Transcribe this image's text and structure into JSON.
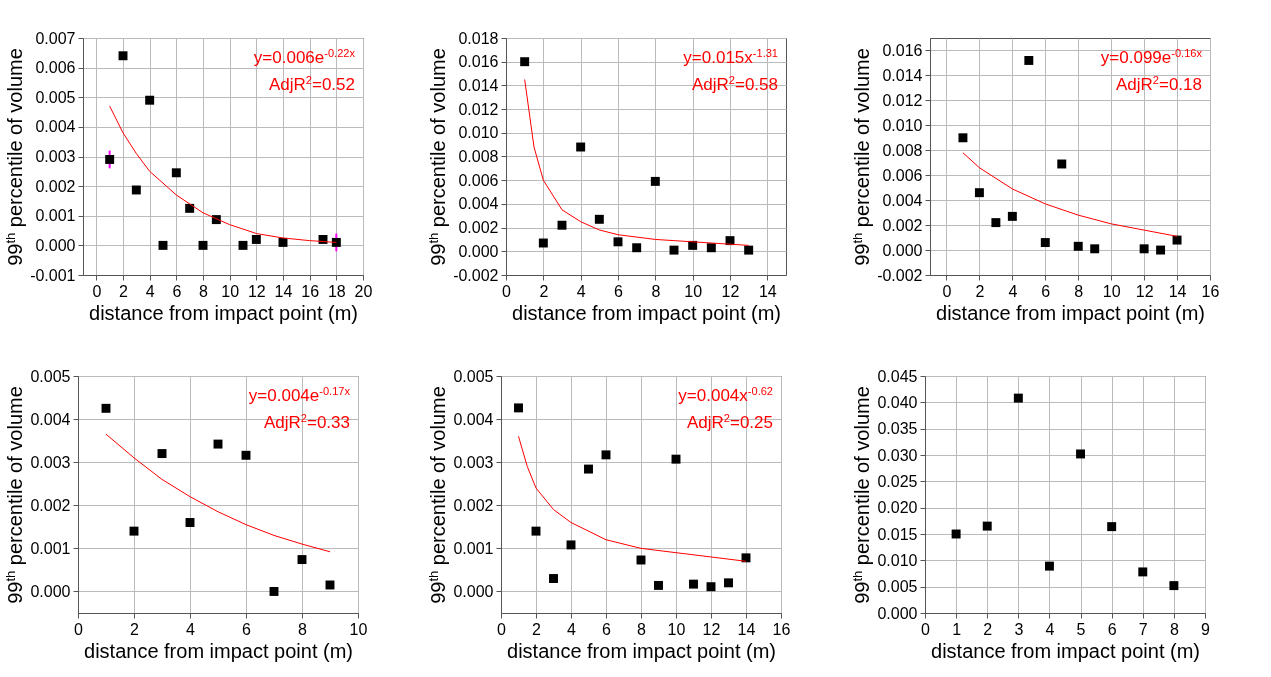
{
  "chart_data": [
    {
      "type": "scatter",
      "xlabel": "distance from impact point (m)",
      "ylabel": "99$^{th}$ percentile of volume",
      "xlim": [
        -1,
        20
      ],
      "xticks": [
        0,
        2,
        4,
        6,
        8,
        10,
        12,
        14,
        16,
        18,
        20
      ],
      "ylim": [
        -0.001,
        0.007
      ],
      "yticks": [
        {
          "value": -0.001,
          "label": "-0.001"
        },
        {
          "value": 0,
          "label": "0.000"
        },
        0.001,
        0.002,
        0.003,
        0.004,
        0.005,
        0.006,
        0.007
      ],
      "grid": true,
      "marker": "square",
      "annotations": [
        "y=0.006e$^{-0.22x}$",
        "AdjR$^{2}$=0.52"
      ],
      "series": [
        {
          "color": "#000000",
          "x": [
            1,
            2,
            3,
            4,
            5,
            6,
            7,
            8,
            9,
            11,
            12,
            14,
            17,
            18
          ],
          "values": [
            0.0029,
            0.0064,
            0.00187,
            0.0049,
            0.0,
            0.00245,
            0.00125,
            0.0,
            0.00087,
            0.0,
            0.0002,
            0.0001,
            0.0002,
            0.0001
          ],
          "errors": [
            0.0003,
            null,
            null,
            null,
            null,
            null,
            null,
            null,
            null,
            null,
            null,
            null,
            null,
            0.0003
          ]
        },
        {
          "type": "line",
          "marker": "none",
          "color": "#ff0000",
          "x": [
            1,
            2,
            3,
            4,
            6,
            8,
            10,
            12,
            14,
            16,
            18
          ],
          "values": [
            0.0047,
            0.0038,
            0.0031,
            0.0025,
            0.0017,
            0.0011,
            0.0007,
            0.0004,
            0.00025,
            0.00016,
            0.0001
          ]
        }
      ]
    },
    {
      "type": "scatter",
      "xlabel": "distance from impact point (m)",
      "ylabel": "99$^{th}$ percentile of volume",
      "xlim": [
        0,
        15
      ],
      "xticks": [
        0,
        2,
        4,
        6,
        8,
        10,
        12,
        14
      ],
      "ylim": [
        -0.002,
        0.018
      ],
      "yticks": [
        {
          "value": -0.002,
          "label": "-0.002"
        },
        {
          "value": 0,
          "label": "0.000"
        },
        {
          "value": 0.002,
          "label": "0.002"
        },
        {
          "value": 0.004,
          "label": "0.004"
        },
        {
          "value": 0.006,
          "label": "0.006"
        },
        {
          "value": 0.008,
          "label": "0.008"
        },
        {
          "value": 0.01,
          "label": "0.010"
        },
        {
          "value": 0.012,
          "label": "0.012"
        },
        {
          "value": 0.014,
          "label": "0.014"
        },
        {
          "value": 0.016,
          "label": "0.016"
        },
        {
          "value": 0.018,
          "label": "0.018"
        }
      ],
      "grid": true,
      "marker": "square",
      "annotations": [
        "y=0.015x$^{-1.31}$",
        "AdjR$^{2}$=0.58"
      ],
      "series": [
        {
          "color": "#000000",
          "x": [
            1,
            2,
            3,
            4,
            5,
            6,
            7,
            8,
            9,
            10,
            11,
            12,
            13
          ],
          "values": [
            0.016,
            0.0007,
            0.0022,
            0.0088,
            0.0027,
            0.0008,
            0.0003,
            0.0059,
            0.0001,
            0.0005,
            0.0003,
            0.0009,
            0.0001
          ]
        },
        {
          "type": "line",
          "marker": "none",
          "color": "#ff0000",
          "x": [
            1,
            1.5,
            2,
            3,
            4,
            5,
            6,
            8,
            10,
            13
          ],
          "values": [
            0.0145,
            0.0088,
            0.006,
            0.0035,
            0.0025,
            0.0018,
            0.0014,
            0.001,
            0.0008,
            0.0005
          ]
        }
      ]
    },
    {
      "type": "scatter",
      "xlabel": "distance from impact point (m)",
      "ylabel": "99$^{th}$ percentile of volume",
      "xlim": [
        -1,
        16
      ],
      "xticks": [
        0,
        2,
        4,
        6,
        8,
        10,
        12,
        14,
        16
      ],
      "ylim": [
        -0.002,
        0.017
      ],
      "yticks": [
        {
          "value": -0.002,
          "label": "-0.002"
        },
        {
          "value": 0,
          "label": "0.000"
        },
        {
          "value": 0.002,
          "label": "0.002"
        },
        {
          "value": 0.004,
          "label": "0.004"
        },
        {
          "value": 0.006,
          "label": "0.006"
        },
        {
          "value": 0.008,
          "label": "0.008"
        },
        {
          "value": 0.01,
          "label": "0.010"
        },
        {
          "value": 0.012,
          "label": "0.012"
        },
        {
          "value": 0.014,
          "label": "0.014"
        },
        {
          "value": 0.016,
          "label": "0.016"
        }
      ],
      "grid": true,
      "marker": "square",
      "annotations": [
        "y=0.099e$^{-0.16x}$",
        "AdjR$^{2}$=0.18"
      ],
      "series": [
        {
          "color": "#000000",
          "x": [
            1,
            2,
            3,
            4,
            5,
            6,
            7,
            8,
            9,
            12,
            13,
            14
          ],
          "values": [
            0.009,
            0.0046,
            0.0022,
            0.0027,
            0.0152,
            0.0006,
            0.0069,
            0.0003,
            0.0001,
            0.0001,
            0.0,
            0.0008
          ]
        },
        {
          "type": "line",
          "marker": "none",
          "color": "#ff0000",
          "x": [
            1,
            2,
            4,
            6,
            8,
            10,
            12,
            14
          ],
          "values": [
            0.0078,
            0.0066,
            0.0049,
            0.0037,
            0.0028,
            0.0021,
            0.0016,
            0.0011
          ]
        }
      ]
    },
    {
      "type": "scatter",
      "xlabel": "distance from impact point (m)",
      "ylabel": "99$^{th}$ percentile of volume",
      "xlim": [
        0,
        10
      ],
      "xticks": [
        0,
        2,
        4,
        6,
        8,
        10
      ],
      "ylim": [
        -0.0005,
        0.005
      ],
      "yticks": [
        {
          "value": 0,
          "label": "0.000"
        },
        0.001,
        0.002,
        0.003,
        0.004,
        0.005
      ],
      "grid": true,
      "marker": "square",
      "annotations": [
        "y=0.004e$^{-0.17x}$",
        "AdjR$^{2}$=0.33"
      ],
      "series": [
        {
          "color": "#000000",
          "x": [
            1,
            2,
            3,
            4,
            5,
            6,
            7,
            8,
            9
          ],
          "values": [
            0.00425,
            0.0014,
            0.0032,
            0.0016,
            0.00342,
            0.00316,
            0.0,
            0.00074,
            0.00015
          ]
        },
        {
          "type": "line",
          "marker": "none",
          "color": "#ff0000",
          "x": [
            1,
            2,
            3,
            4,
            5,
            6,
            7,
            8,
            9
          ],
          "values": [
            0.00365,
            0.0031,
            0.0026,
            0.0022,
            0.00185,
            0.00155,
            0.0013,
            0.0011,
            0.00092
          ]
        }
      ]
    },
    {
      "type": "scatter",
      "xlabel": "distance from impact point (m)",
      "ylabel": "99$^{th}$ percentile of volume",
      "xlim": [
        0,
        16
      ],
      "xticks": [
        0,
        2,
        4,
        6,
        8,
        10,
        12,
        14,
        16
      ],
      "ylim": [
        -0.0005,
        0.005
      ],
      "yticks": [
        {
          "value": 0,
          "label": "0.000"
        },
        0.001,
        0.002,
        0.003,
        0.004,
        0.005
      ],
      "grid": true,
      "marker": "square",
      "annotations": [
        "y=0.004x$^{-0.62}$",
        "AdjR$^{2}$=0.25"
      ],
      "series": [
        {
          "color": "#000000",
          "x": [
            1,
            2,
            3,
            4,
            5,
            6,
            8,
            9,
            10,
            11,
            12,
            13,
            14
          ],
          "values": [
            0.00426,
            0.0014,
            0.0003,
            0.00108,
            0.00284,
            0.00317,
            0.00073,
            0.00014,
            0.00307,
            0.00017,
            0.00011,
            0.0002,
            0.00078
          ]
        },
        {
          "type": "line",
          "marker": "none",
          "color": "#ff0000",
          "x": [
            1,
            1.5,
            2,
            3,
            4,
            6,
            8,
            10,
            12,
            14
          ],
          "values": [
            0.0036,
            0.0029,
            0.0024,
            0.0019,
            0.0016,
            0.0012,
            0.001,
            0.0009,
            0.0008,
            0.0007
          ]
        }
      ]
    },
    {
      "type": "scatter",
      "xlabel": "distance from impact point (m)",
      "ylabel": "99$^{th}$ percentile of volume",
      "xlim": [
        0,
        9
      ],
      "xticks": [
        0,
        1,
        2,
        3,
        4,
        5,
        6,
        7,
        8,
        9
      ],
      "ylim": [
        0,
        0.045
      ],
      "yticks": [
        {
          "value": 0,
          "label": "0.000"
        },
        {
          "value": 0.005,
          "label": "0.005"
        },
        {
          "value": 0.01,
          "label": "0.010"
        },
        {
          "value": 0.015,
          "label": "0.015"
        },
        {
          "value": 0.02,
          "label": "0.020"
        },
        {
          "value": 0.025,
          "label": "0.025"
        },
        {
          "value": 0.03,
          "label": "0.030"
        },
        {
          "value": 0.035,
          "label": "0.035"
        },
        {
          "value": 0.04,
          "label": "0.040"
        },
        {
          "value": 0.045,
          "label": "0.045"
        }
      ],
      "grid": true,
      "marker": "square",
      "series": [
        {
          "color": "#000000",
          "x": [
            1,
            2,
            3,
            4,
            5,
            6,
            7,
            8
          ],
          "values": [
            0.015,
            0.0165,
            0.0408,
            0.0089,
            0.0302,
            0.0164,
            0.0078,
            0.0052
          ]
        }
      ]
    }
  ]
}
